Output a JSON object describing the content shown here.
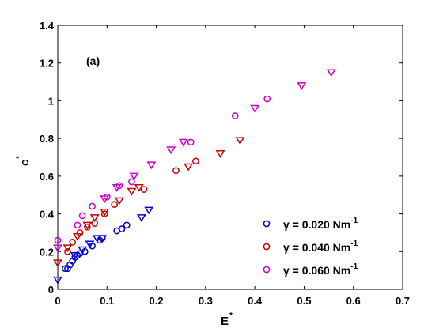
{
  "chart_data": {
    "type": "scatter",
    "panel_label": "(a)",
    "xlabel": "E",
    "xlabel_sup": "*",
    "ylabel": "c",
    "ylabel_sup": "*",
    "xlim": [
      0,
      0.7
    ],
    "ylim": [
      0,
      1.4
    ],
    "x_ticks": [
      0,
      0.1,
      0.2,
      0.3,
      0.4,
      0.5,
      0.6,
      0.7
    ],
    "x_tick_labels": [
      "0",
      "0.1",
      "0.2",
      "0.3",
      "0.4",
      "0.5",
      "0.6",
      "0.7"
    ],
    "y_ticks": [
      0,
      0.2,
      0.4,
      0.6,
      0.8,
      1.0,
      1.2,
      1.4
    ],
    "y_tick_labels": [
      "0",
      "0.2",
      "0.4",
      "0.6",
      "0.8",
      "1",
      "1.2",
      "1.4"
    ],
    "grid": false,
    "legend_position": "bottom-right",
    "series": [
      {
        "name": "γ = 0.020 Nm",
        "name_sup": "-1",
        "color": "#0000cc",
        "circles": [
          [
            0.015,
            0.11
          ],
          [
            0.02,
            0.11
          ],
          [
            0.025,
            0.13
          ],
          [
            0.03,
            0.15
          ],
          [
            0.035,
            0.17
          ],
          [
            0.04,
            0.18
          ],
          [
            0.045,
            0.19
          ],
          [
            0.055,
            0.2
          ],
          [
            0.07,
            0.23
          ],
          [
            0.085,
            0.26
          ],
          [
            0.09,
            0.27
          ],
          [
            0.12,
            0.31
          ],
          [
            0.13,
            0.32
          ],
          [
            0.14,
            0.34
          ]
        ],
        "triangles": [
          [
            0.0,
            0.05
          ],
          [
            0.035,
            0.18
          ],
          [
            0.05,
            0.21
          ],
          [
            0.065,
            0.24
          ],
          [
            0.08,
            0.27
          ],
          [
            0.09,
            0.27
          ],
          [
            0.17,
            0.38
          ],
          [
            0.185,
            0.42
          ]
        ]
      },
      {
        "name": "γ = 0.040 Nm",
        "name_sup": "-1",
        "color": "#cc0000",
        "circles": [
          [
            0.02,
            0.2
          ],
          [
            0.03,
            0.25
          ],
          [
            0.045,
            0.3
          ],
          [
            0.06,
            0.33
          ],
          [
            0.075,
            0.35
          ],
          [
            0.095,
            0.4
          ],
          [
            0.115,
            0.45
          ],
          [
            0.175,
            0.53
          ],
          [
            0.24,
            0.63
          ],
          [
            0.28,
            0.68
          ]
        ],
        "triangles": [
          [
            0.0,
            0.14
          ],
          [
            0.02,
            0.22
          ],
          [
            0.04,
            0.28
          ],
          [
            0.06,
            0.34
          ],
          [
            0.075,
            0.38
          ],
          [
            0.095,
            0.41
          ],
          [
            0.125,
            0.47
          ],
          [
            0.15,
            0.52
          ],
          [
            0.165,
            0.54
          ],
          [
            0.265,
            0.65
          ],
          [
            0.33,
            0.72
          ],
          [
            0.37,
            0.79
          ]
        ]
      },
      {
        "name": "γ = 0.060 Nm",
        "name_sup": "-1",
        "color": "#cc00cc",
        "circles": [
          [
            0.0,
            0.26
          ],
          [
            0.04,
            0.34
          ],
          [
            0.05,
            0.39
          ],
          [
            0.07,
            0.44
          ],
          [
            0.1,
            0.49
          ],
          [
            0.125,
            0.55
          ],
          [
            0.15,
            0.57
          ],
          [
            0.27,
            0.78
          ],
          [
            0.36,
            0.92
          ],
          [
            0.425,
            1.01
          ]
        ],
        "triangles": [
          [
            0.0,
            0.22
          ],
          [
            0.095,
            0.48
          ],
          [
            0.12,
            0.54
          ],
          [
            0.155,
            0.6
          ],
          [
            0.19,
            0.66
          ],
          [
            0.23,
            0.74
          ],
          [
            0.255,
            0.78
          ],
          [
            0.4,
            0.96
          ],
          [
            0.495,
            1.08
          ],
          [
            0.555,
            1.15
          ]
        ]
      }
    ]
  }
}
